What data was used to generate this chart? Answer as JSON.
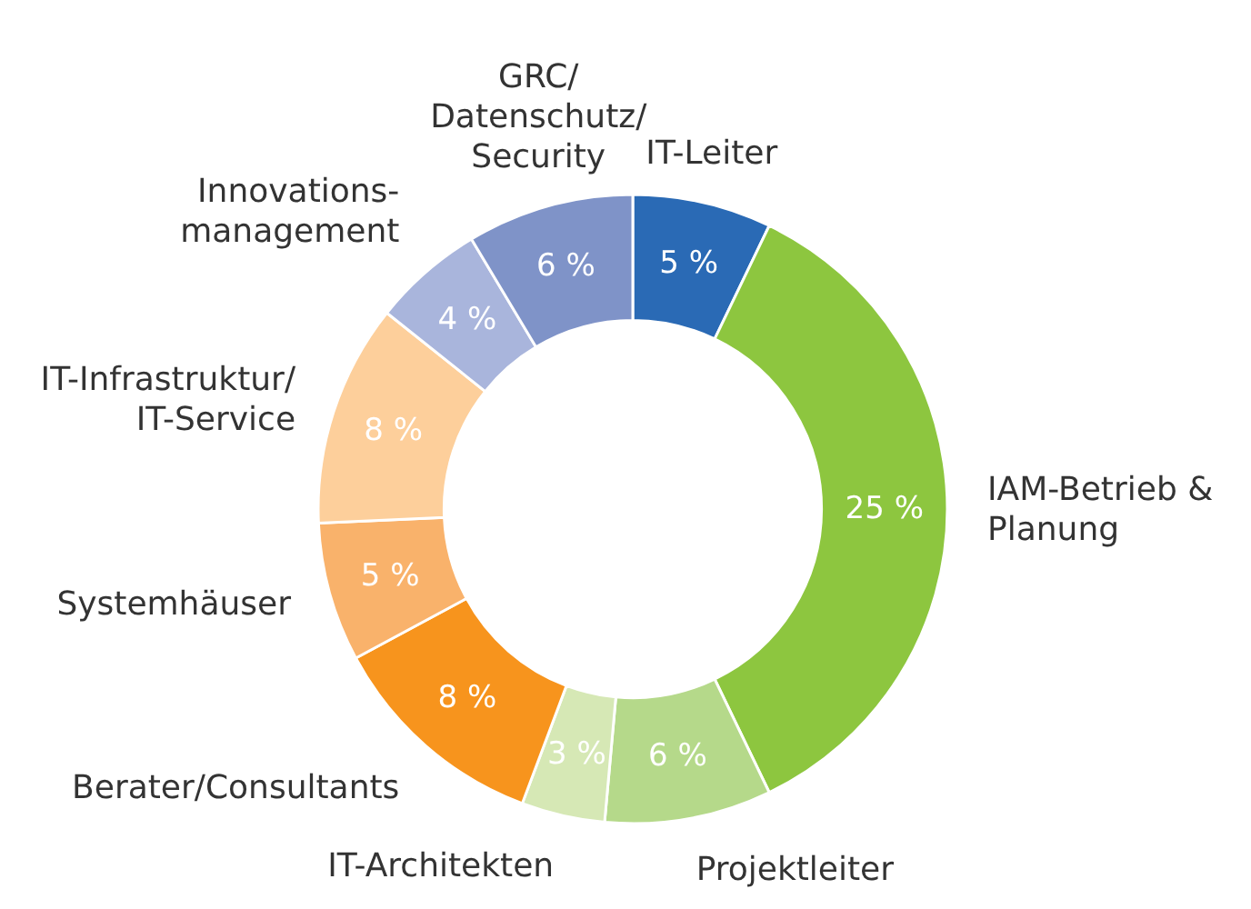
{
  "chart_data": {
    "type": "donut",
    "categories": [
      "IT-Leiter",
      "IAM-Betrieb &\nPlanung",
      "Projektleiter",
      "IT-Architekten",
      "Berater/Consultants",
      "Systemhäuser",
      "IT-Infrastruktur/\nIT-Service",
      "Innovations-\nmanagement",
      "GRC/\nDatenschutz/\nSecurity"
    ],
    "values": [
      5,
      25,
      6,
      3,
      8,
      5,
      8,
      4,
      6
    ],
    "value_labels": [
      "5 %",
      "25 %",
      "6 %",
      "3 %",
      "8 %",
      "5 %",
      "8 %",
      "4 %",
      "6 %"
    ],
    "colors": [
      "#2a6ab5",
      "#8dc63f",
      "#b5d98a",
      "#d6e8b5",
      "#f7941d",
      "#f9b26b",
      "#fdcf9b",
      "#a9b5dc",
      "#7f93c8"
    ]
  }
}
